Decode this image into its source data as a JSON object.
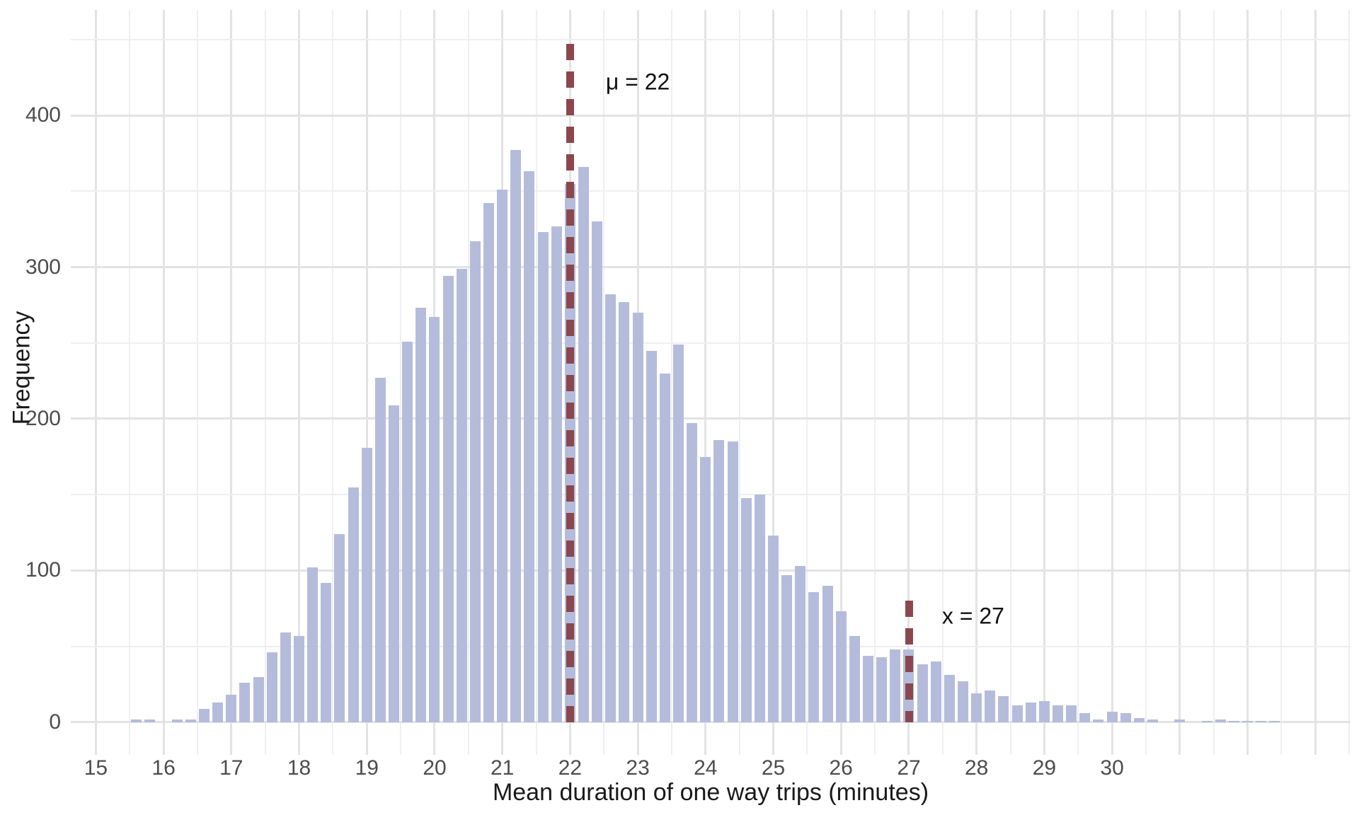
{
  "chart_data": {
    "type": "histogram",
    "title": "",
    "xlabel": "Mean duration of one way trips (minutes)",
    "ylabel": "Frequency",
    "bin_start": 15.5,
    "bin_width": 0.2,
    "counts": [
      2,
      2,
      0,
      2,
      2,
      9,
      13,
      18,
      26,
      30,
      46,
      59,
      57,
      102,
      92,
      124,
      155,
      181,
      227,
      209,
      251,
      273,
      267,
      294,
      299,
      317,
      342,
      351,
      377,
      363,
      323,
      327,
      355,
      366,
      330,
      282,
      277,
      270,
      245,
      230,
      249,
      197,
      175,
      186,
      185,
      148,
      150,
      123,
      97,
      103,
      86,
      90,
      73,
      57,
      44,
      43,
      48,
      48,
      38,
      40,
      31,
      27,
      19,
      21,
      17,
      11,
      13,
      14,
      11,
      11,
      6,
      2,
      7,
      6,
      3,
      2,
      0,
      2,
      0,
      1,
      2,
      1,
      1,
      1,
      1
    ],
    "xlim": [
      14.63,
      33.52
    ],
    "ylim": [
      -21.5,
      469.5
    ],
    "x_ticks": [
      {
        "value": 15,
        "label": "15"
      },
      {
        "value": 16,
        "label": "16"
      },
      {
        "value": 17,
        "label": "17"
      },
      {
        "value": 18,
        "label": "18"
      },
      {
        "value": 19,
        "label": "19"
      },
      {
        "value": 20,
        "label": "20"
      },
      {
        "value": 21,
        "label": "21"
      },
      {
        "value": 22,
        "label": "22"
      },
      {
        "value": 23,
        "label": "23"
      },
      {
        "value": 24,
        "label": "24"
      },
      {
        "value": 25,
        "label": "25"
      },
      {
        "value": 26,
        "label": "26"
      },
      {
        "value": 27,
        "label": "27"
      },
      {
        "value": 28,
        "label": "28"
      },
      {
        "value": 29,
        "label": "29"
      },
      {
        "value": 30,
        "label": "30"
      }
    ],
    "y_ticks": [
      {
        "value": 0,
        "label": "0"
      },
      {
        "value": 100,
        "label": "100"
      },
      {
        "value": 200,
        "label": "200"
      },
      {
        "value": 300,
        "label": "300"
      },
      {
        "value": 400,
        "label": "400"
      }
    ],
    "grid": {
      "major_step_x": 1,
      "minor_step_x": 0.5,
      "major_step_y": 100,
      "minor_step_y": 50,
      "shown": true
    },
    "legend": "none",
    "vlines": [
      {
        "x": 22,
        "label": "μ = 22",
        "style": "dashed",
        "y_span": [
          0,
          447
        ],
        "label_pos": {
          "x": 23.0,
          "y": 422
        }
      },
      {
        "x": 27,
        "label": "x = 27",
        "style": "dashed",
        "y_span": [
          0,
          80
        ],
        "label_pos": {
          "x": 27.95,
          "y": 70
        }
      }
    ],
    "colors": {
      "bar_fill": "#b5bcdb",
      "vline": "#8a474d",
      "grid_major": "#e3e3e3",
      "grid_minor": "#efefef",
      "tick_text": "#4d4d4d",
      "axis_title_text": "#1a1a1a",
      "background": "#ffffff"
    }
  }
}
